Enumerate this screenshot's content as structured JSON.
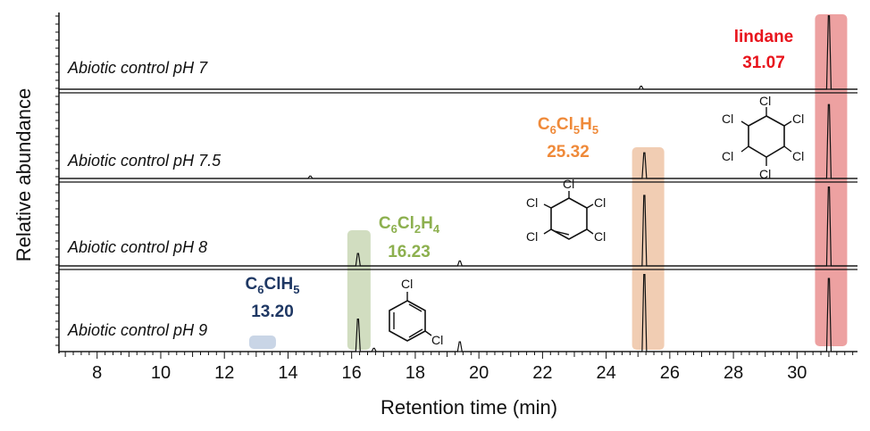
{
  "chart_data": {
    "type": "line",
    "xlabel": "Retention time (min)",
    "ylabel": "Relative abundance",
    "xlim": [
      6.8,
      31.9
    ],
    "xticks": [
      8,
      10,
      12,
      14,
      16,
      18,
      20,
      22,
      24,
      26,
      28,
      30
    ],
    "panels": [
      {
        "label": "Abiotic control pH  7",
        "peaks": [
          {
            "x": 25.1,
            "h": 0.04
          },
          {
            "x": 31.0,
            "h": 0.98
          }
        ]
      },
      {
        "label": "Abiotic control pH 7.5",
        "peaks": [
          {
            "x": 14.7,
            "h": 0.03
          },
          {
            "x": 25.2,
            "h": 0.32
          },
          {
            "x": 31.0,
            "h": 0.92
          }
        ]
      },
      {
        "label": "Abiotic control pH  8",
        "peaks": [
          {
            "x": 16.2,
            "h": 0.15
          },
          {
            "x": 19.4,
            "h": 0.06
          },
          {
            "x": 25.2,
            "h": 0.85
          },
          {
            "x": 31.0,
            "h": 0.95
          }
        ]
      },
      {
        "label": "Abiotic control pH 9",
        "peaks": [
          {
            "x": 16.2,
            "h": 0.4
          },
          {
            "x": 16.7,
            "h": 0.04
          },
          {
            "x": 19.4,
            "h": 0.12
          },
          {
            "x": 25.2,
            "h": 0.95
          },
          {
            "x": 31.0,
            "h": 0.9
          }
        ]
      }
    ],
    "highlights": [
      {
        "x": 31.07,
        "color": "#e88a8a"
      },
      {
        "x": 25.32,
        "color": "#eec0a0"
      },
      {
        "x": 16.23,
        "color": "#c5d4b0"
      },
      {
        "x": 13.2,
        "color": "#bccbe0"
      }
    ],
    "annotations": [
      {
        "name": "lindane",
        "rt": "31.07",
        "color": "#e8141c"
      },
      {
        "name": "C6Cl5H5",
        "base": "C",
        "sub1": "6",
        "el2": "Cl",
        "sub2": "5",
        "el3": "H",
        "sub3": "5",
        "rt": "25.32",
        "color": "#ef8a3a"
      },
      {
        "name": "C6Cl2H4",
        "base": "C",
        "sub1": "6",
        "el2": "Cl",
        "sub2": "2",
        "el3": "H",
        "sub3": "4",
        "rt": "16.23",
        "color": "#8db04f"
      },
      {
        "name": "C6ClH5",
        "base": "C",
        "sub1": "6",
        "el2": "ClH",
        "sub2": "5",
        "rt": "13.20",
        "color": "#1f3864"
      }
    ],
    "structure_labels": {
      "cl": "Cl"
    }
  }
}
